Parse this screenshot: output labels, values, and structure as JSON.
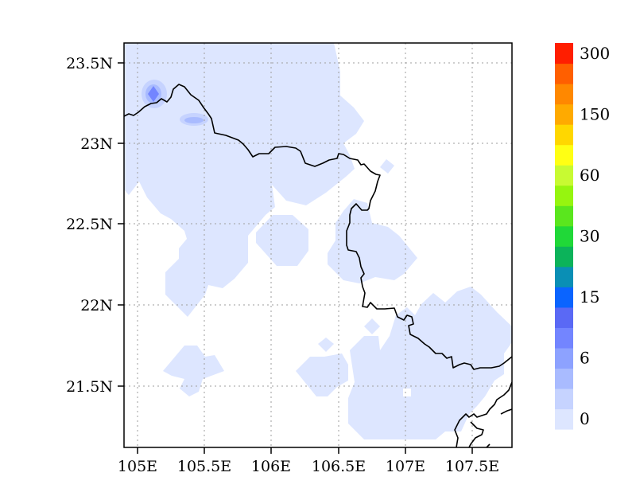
{
  "map": {
    "lon_range": [
      104.9,
      107.8
    ],
    "lat_range": [
      21.1,
      23.6
    ],
    "grid_lines": "dotted",
    "land_boundaries": "black lines",
    "x_ticks": [
      {
        "value": 105.0,
        "label": "105E"
      },
      {
        "value": 105.5,
        "label": "105.5E"
      },
      {
        "value": 106.0,
        "label": "106E"
      },
      {
        "value": 106.5,
        "label": "106.5E"
      },
      {
        "value": 107.0,
        "label": "107E"
      },
      {
        "value": 107.5,
        "label": "107.5E"
      }
    ],
    "y_ticks": [
      {
        "value": 23.5,
        "label": "23.5N"
      },
      {
        "value": 23.0,
        "label": "23N"
      },
      {
        "value": 22.5,
        "label": "22.5N"
      },
      {
        "value": 22.0,
        "label": "22N"
      },
      {
        "value": 21.5,
        "label": "21.5N"
      }
    ]
  },
  "colorbar": {
    "colors": [
      "#dde6ff",
      "#c6d3ff",
      "#a9bbff",
      "#8da2ff",
      "#7385ff",
      "#5a69f5",
      "#0a64ff",
      "#0a8fb5",
      "#0cb35a",
      "#20d838",
      "#5ae61e",
      "#96f50f",
      "#c8fa32",
      "#ffff14",
      "#ffd700",
      "#ffaa00",
      "#ff8800",
      "#ff5f00",
      "#ff1e00"
    ],
    "labels": [
      {
        "text": "0",
        "index": 0
      },
      {
        "text": "6",
        "index": 3
      },
      {
        "text": "15",
        "index": 6
      },
      {
        "text": "30",
        "index": 9
      },
      {
        "text": "60",
        "index": 12
      },
      {
        "text": "150",
        "index": 15
      },
      {
        "text": "300",
        "index": 18
      }
    ]
  }
}
